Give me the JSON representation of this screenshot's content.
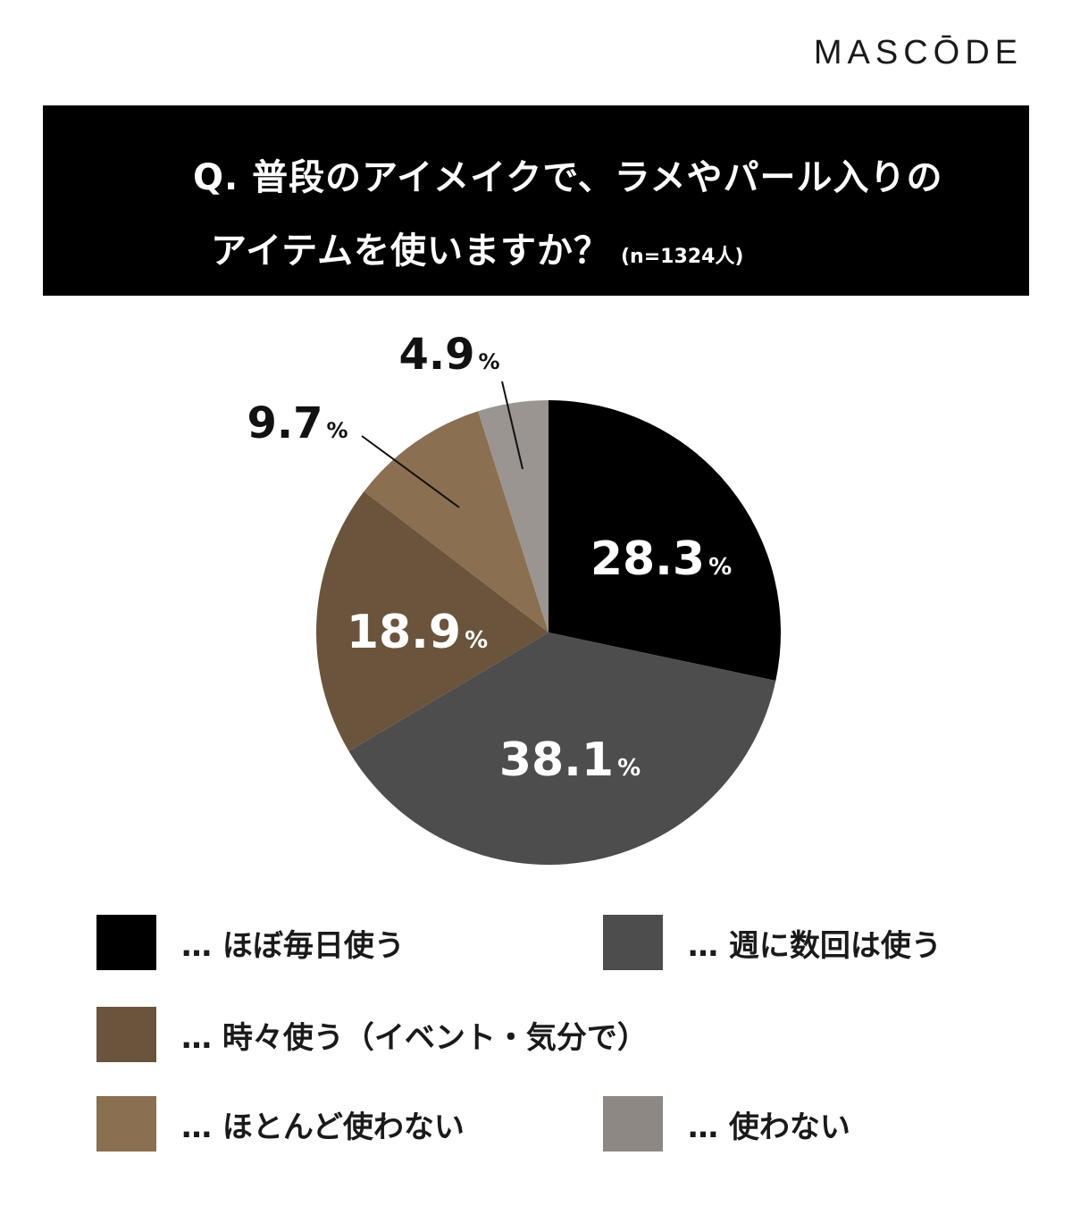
{
  "brand": {
    "logo": "MASCŌDE"
  },
  "question": {
    "line1": "Q. 普段のアイメイクで、ラメやパール入りの",
    "line2": "アイテムを使いますか？",
    "sample": "(n=1324人)"
  },
  "chart_data": {
    "type": "pie",
    "percent_sign": "%",
    "slices": [
      {
        "label": "ほぼ毎日使う",
        "value": 28.3,
        "color": "#000000",
        "label_color": "#ffffff"
      },
      {
        "label": "週に数回は使う",
        "value": 38.1,
        "color": "#4d4d4d",
        "label_color": "#ffffff"
      },
      {
        "label": "時々使う（イベント・気分で）",
        "value": 18.9,
        "color": "#6b543c",
        "label_color": "#ffffff"
      },
      {
        "label": "ほとんど使わない",
        "value": 9.7,
        "color": "#8a6f50",
        "label_color": "#111111"
      },
      {
        "label": "使わない",
        "value": 4.9,
        "color": "#9b9592",
        "label_color": "#111111"
      }
    ]
  },
  "legend": {
    "items": [
      {
        "text": "… ほぼ毎日使う",
        "color": "#000000"
      },
      {
        "text": "… 週に数回は使う",
        "color": "#4d4d4d"
      },
      {
        "text": "… 時々使う（イベント・気分で）",
        "color": "#6b543c"
      },
      {
        "text": "… ほとんど使わない",
        "color": "#8a6f50"
      },
      {
        "text": "… 使わない",
        "color": "#8e8884"
      }
    ]
  }
}
